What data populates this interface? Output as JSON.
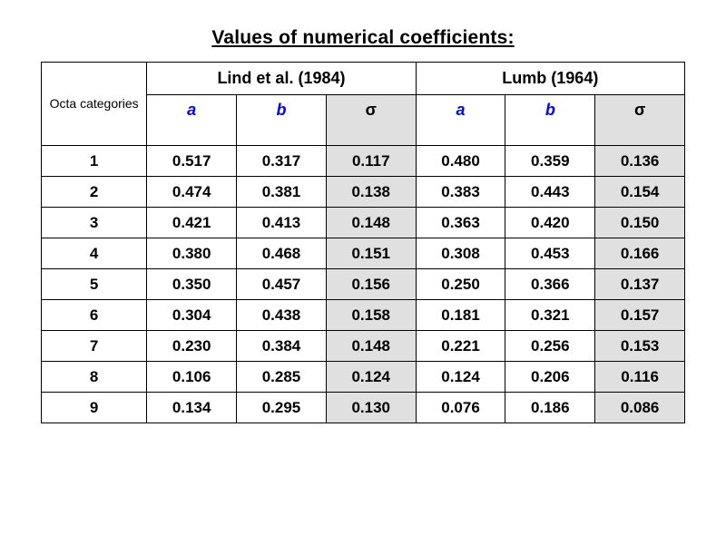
{
  "title": "Values of numerical coefficients:",
  "columns": {
    "octa_header": "Octa categories",
    "groups": [
      {
        "label": "Lind et al. (1984)",
        "sub": [
          "a",
          "b",
          "σ"
        ]
      },
      {
        "label": "Lumb (1964)",
        "sub": [
          "a",
          "b",
          "σ"
        ]
      }
    ]
  },
  "rows": [
    {
      "cat": "1",
      "lind": [
        "0.517",
        "0.317",
        "0.117"
      ],
      "lumb": [
        "0.480",
        "0.359",
        "0.136"
      ]
    },
    {
      "cat": "2",
      "lind": [
        "0.474",
        "0.381",
        "0.138"
      ],
      "lumb": [
        "0.383",
        "0.443",
        "0.154"
      ]
    },
    {
      "cat": "3",
      "lind": [
        "0.421",
        "0.413",
        "0.148"
      ],
      "lumb": [
        "0.363",
        "0.420",
        "0.150"
      ]
    },
    {
      "cat": "4",
      "lind": [
        "0.380",
        "0.468",
        "0.151"
      ],
      "lumb": [
        "0.308",
        "0.453",
        "0.166"
      ]
    },
    {
      "cat": "5",
      "lind": [
        "0.350",
        "0.457",
        "0.156"
      ],
      "lumb": [
        "0.250",
        "0.366",
        "0.137"
      ]
    },
    {
      "cat": "6",
      "lind": [
        "0.304",
        "0.438",
        "0.158"
      ],
      "lumb": [
        "0.181",
        "0.321",
        "0.157"
      ]
    },
    {
      "cat": "7",
      "lind": [
        "0.230",
        "0.384",
        "0.148"
      ],
      "lumb": [
        "0.221",
        "0.256",
        "0.153"
      ]
    },
    {
      "cat": "8",
      "lind": [
        "0.106",
        "0.285",
        "0.124"
      ],
      "lumb": [
        "0.124",
        "0.206",
        "0.116"
      ]
    },
    {
      "cat": "9",
      "lind": [
        "0.134",
        "0.295",
        "0.130"
      ],
      "lumb": [
        "0.076",
        "0.186",
        "0.086"
      ]
    }
  ],
  "style": {
    "background_color": "#ffffff",
    "border_color": "#000000",
    "sigma_bg": "#e0e0e0",
    "subheader_color": "#0000ff",
    "title_fontsize": 21,
    "cell_fontsize": 17,
    "octa_fontsize": 14,
    "font_family": "Arial"
  }
}
